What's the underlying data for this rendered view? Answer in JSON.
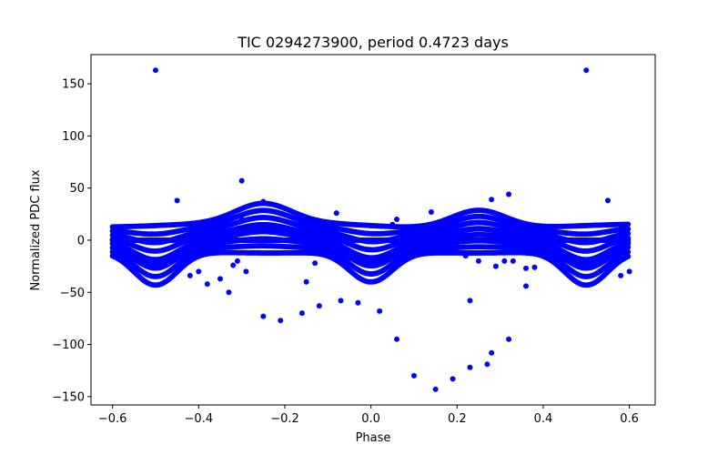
{
  "chart_data": {
    "type": "scatter",
    "title": "TIC 0294273900, period 0.4723 days",
    "xlabel": "Phase",
    "ylabel": "Normalized PDC flux",
    "xlim": [
      -0.65,
      0.66
    ],
    "ylim": [
      -158,
      178
    ],
    "xticks": [
      -0.6,
      -0.4,
      -0.2,
      0.0,
      0.2,
      0.4,
      0.6
    ],
    "xtick_labels": [
      "−0.6",
      "−0.4",
      "−0.2",
      "0.0",
      "0.2",
      "0.4",
      "0.6"
    ],
    "yticks": [
      -150,
      -100,
      -50,
      0,
      50,
      100,
      150
    ],
    "ytick_labels": [
      "−150",
      "−100",
      "−50",
      "0",
      "50",
      "100",
      "150"
    ],
    "grid": false,
    "marker_color": "#0000ff",
    "series": [
      {
        "points": [
          [
            -0.5,
            163
          ],
          [
            0.5,
            163
          ],
          [
            -0.3,
            57
          ],
          [
            -0.45,
            38
          ],
          [
            0.55,
            38
          ],
          [
            0.32,
            44
          ],
          [
            0.28,
            39
          ],
          [
            -0.25,
            37
          ],
          [
            -0.08,
            26
          ],
          [
            0.06,
            20
          ],
          [
            0.14,
            27
          ],
          [
            -0.38,
            -42
          ],
          [
            -0.4,
            -30
          ],
          [
            -0.42,
            -34
          ],
          [
            -0.35,
            -37
          ],
          [
            -0.33,
            -50
          ],
          [
            -0.32,
            -24
          ],
          [
            -0.31,
            -20
          ],
          [
            -0.29,
            -30
          ],
          [
            -0.25,
            -73
          ],
          [
            -0.21,
            -77
          ],
          [
            -0.16,
            -70
          ],
          [
            -0.15,
            -40
          ],
          [
            -0.13,
            -22
          ],
          [
            -0.12,
            -63
          ],
          [
            -0.07,
            -58
          ],
          [
            -0.03,
            -60
          ],
          [
            0.02,
            -68
          ],
          [
            0.06,
            -95
          ],
          [
            0.1,
            -130
          ],
          [
            0.15,
            -143
          ],
          [
            0.19,
            -133
          ],
          [
            0.23,
            -122
          ],
          [
            0.23,
            -58
          ],
          [
            0.27,
            -119
          ],
          [
            0.28,
            -108
          ],
          [
            0.32,
            -95
          ],
          [
            0.29,
            -25
          ],
          [
            0.33,
            -20
          ],
          [
            0.36,
            -27
          ],
          [
            0.36,
            -44
          ],
          [
            0.38,
            -26
          ],
          [
            0.12,
            -13
          ],
          [
            0.18,
            -12
          ],
          [
            0.22,
            -15
          ],
          [
            0.25,
            -20
          ],
          [
            0.31,
            -20
          ],
          [
            0.58,
            -34
          ],
          [
            0.6,
            -30
          ],
          [
            -0.55,
            -24
          ],
          [
            0.4,
            10
          ],
          [
            0.58,
            5
          ],
          [
            -0.59,
            10
          ],
          [
            -0.3,
            20
          ],
          [
            0.0,
            14
          ],
          [
            0.05,
            15
          ]
        ]
      }
    ]
  }
}
